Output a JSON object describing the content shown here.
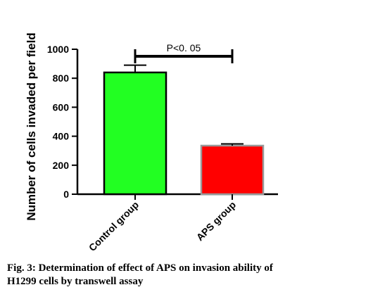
{
  "chart_data": {
    "type": "bar",
    "title": "",
    "xlabel": "",
    "ylabel": "Number of  cells invaded per field",
    "ylim": [
      0,
      1000
    ],
    "yticks": [
      0,
      200,
      400,
      600,
      800,
      1000
    ],
    "categories": [
      "Control group",
      "APS group"
    ],
    "values": [
      840,
      335
    ],
    "errors": [
      50,
      12
    ],
    "colors": [
      "#22ff22",
      "#ff0000"
    ],
    "annotation": "P<0. 05",
    "grid": false,
    "legend": "none"
  },
  "caption": {
    "line1": "Fig. 3: Determination of effect of APS on invasion ability of",
    "line2": "H1299 cells by transwell assay"
  }
}
